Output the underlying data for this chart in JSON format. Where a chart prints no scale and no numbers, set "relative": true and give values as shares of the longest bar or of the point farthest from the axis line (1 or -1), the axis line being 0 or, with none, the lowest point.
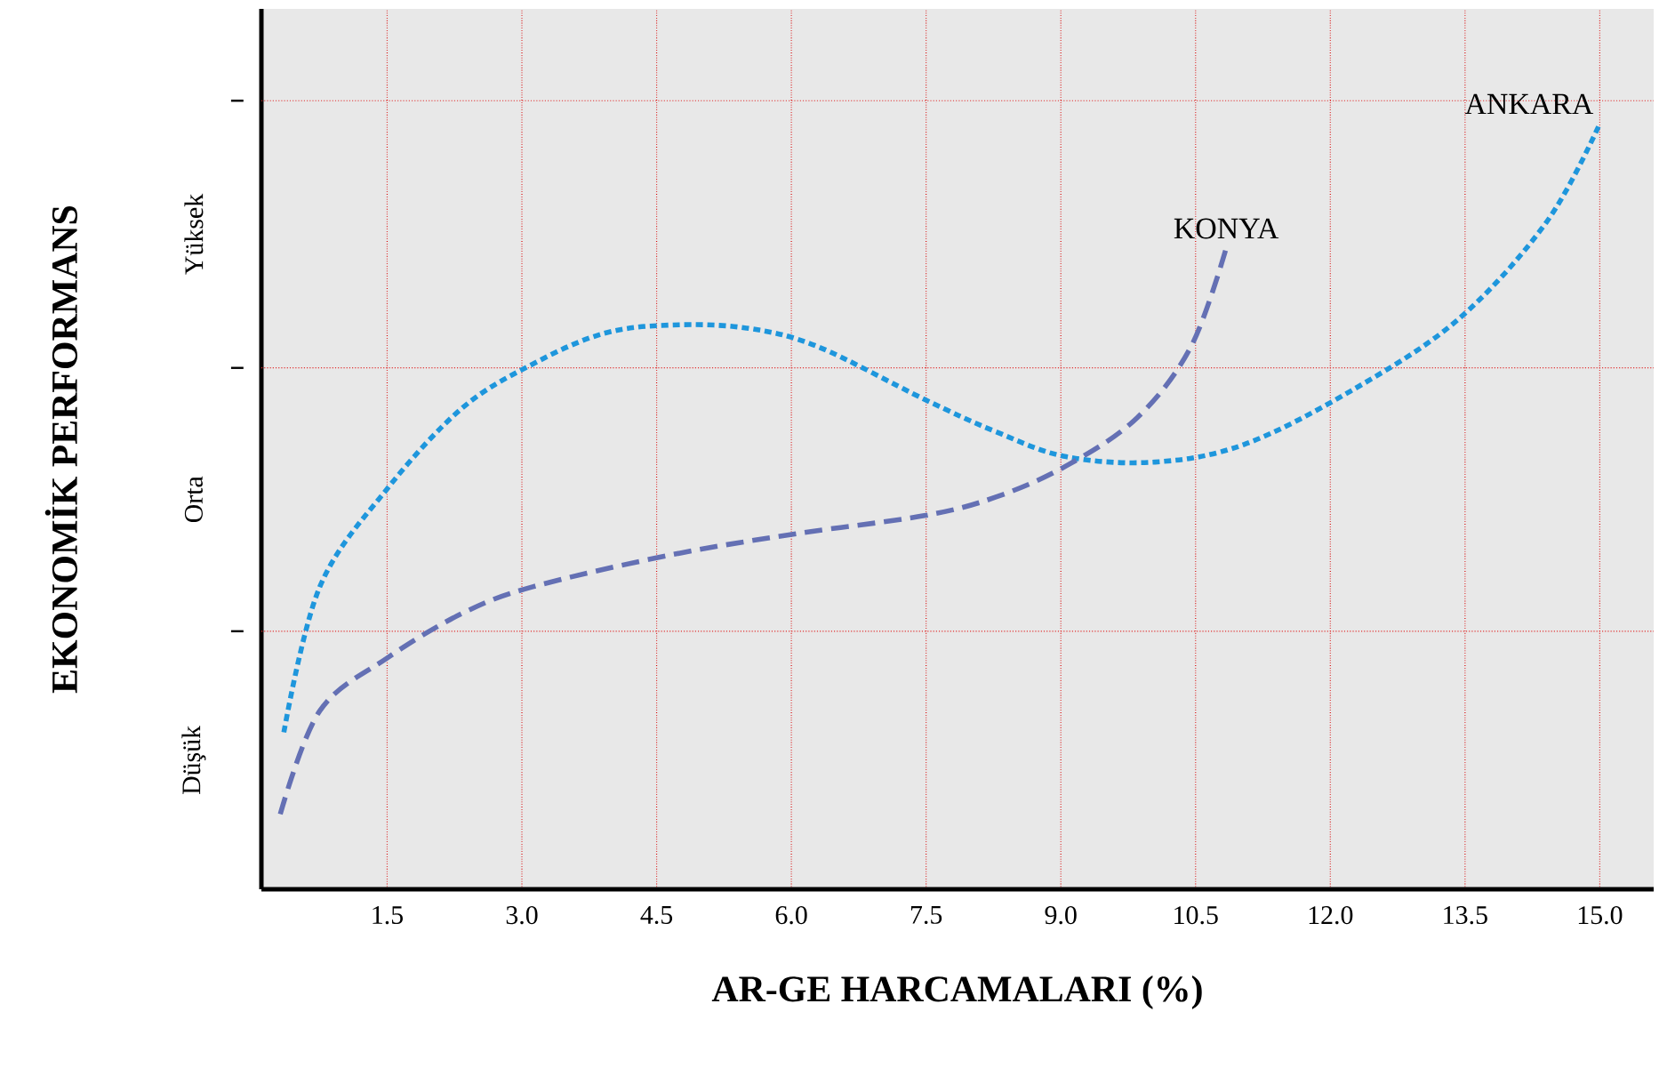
{
  "chart_data": {
    "type": "line",
    "relative": true,
    "xlabel": "AR-GE HARCAMALARI (%)",
    "ylabel": "EKONOMİK PERFORMANS",
    "xlim": [
      0.1,
      15.6
    ],
    "xticks": [
      1.5,
      {
        "value": 3,
        "label": "3.0"
      },
      4.5,
      {
        "value": 6,
        "label": "6.0"
      },
      7.5,
      {
        "value": 9,
        "label": "9.0"
      },
      10.5,
      {
        "value": 12,
        "label": "12.0"
      },
      13.5,
      {
        "value": 15,
        "label": "15.0"
      }
    ],
    "grid": "x",
    "marker": "none",
    "ref_lines": [
      {
        "axis": "y",
        "value": 0.337,
        "color": "#e03030",
        "line_style": "dotted"
      },
      {
        "axis": "y",
        "value": 0.681,
        "color": "#e03030",
        "line_style": "dotted"
      },
      {
        "axis": "y",
        "value": 1.03,
        "color": "#e03030",
        "line_style": "dotted"
      }
    ],
    "annotations": [
      "Düşük",
      "Orta",
      "Yüksek"
    ],
    "series": [
      {
        "name": "ANKARA",
        "color": "#1e96dc",
        "line_style": "dotted",
        "x": [
          0.35,
          0.75,
          1.5,
          2.33,
          3.12,
          3.91,
          4.67,
          5.5,
          6.29,
          7.48,
          8.27,
          9.06,
          10.05,
          11.04,
          12.23,
          13.42,
          14.41,
          15.0
        ],
        "values": [
          0.205,
          0.395,
          0.523,
          0.628,
          0.686,
          0.726,
          0.737,
          0.733,
          0.709,
          0.64,
          0.598,
          0.565,
          0.558,
          0.581,
          0.651,
          0.744,
          0.872,
          1.0
        ]
      },
      {
        "name": "KONYA",
        "color": "#6470b4",
        "line_style": "dashed",
        "x": [
          0.31,
          0.75,
          1.5,
          2.33,
          3.12,
          4.67,
          6.09,
          7.48,
          8.27,
          9.06,
          9.85,
          10.45,
          10.84
        ],
        "values": [
          0.098,
          0.233,
          0.302,
          0.36,
          0.395,
          0.437,
          0.465,
          0.488,
          0.512,
          0.553,
          0.616,
          0.709,
          0.837
        ]
      }
    ]
  }
}
